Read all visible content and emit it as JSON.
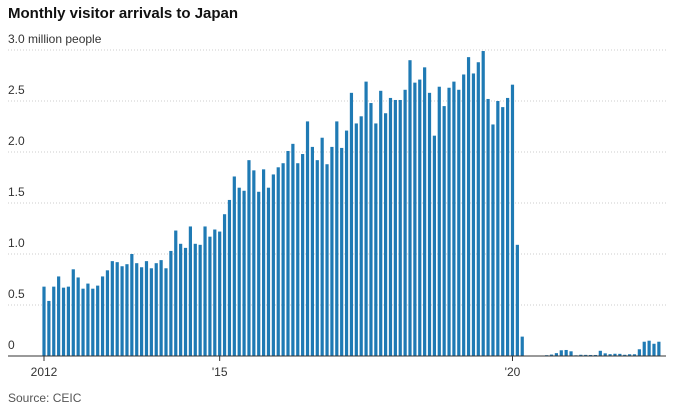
{
  "chart_data": {
    "type": "bar",
    "title": "Monthly visitor arrivals to Japan",
    "source": "Source: CEIC",
    "color": "#1f7ab4",
    "grid": true,
    "ylim": [
      0,
      3.0
    ],
    "yticks": [
      0,
      0.5,
      {
        "value": 1.0,
        "label": "1.0"
      },
      1.5,
      {
        "value": 2.0,
        "label": "2.0"
      },
      2.5,
      {
        "value": 3.0,
        "label": "3.0 million people"
      }
    ],
    "categories": [
      "2012",
      null,
      null,
      null,
      null,
      null,
      null,
      null,
      null,
      null,
      null,
      null,
      null,
      null,
      null,
      null,
      null,
      null,
      null,
      null,
      null,
      null,
      null,
      null,
      null,
      null,
      null,
      null,
      null,
      null,
      null,
      null,
      null,
      null,
      null,
      null,
      "'15",
      null,
      null,
      null,
      null,
      null,
      null,
      null,
      null,
      null,
      null,
      null,
      null,
      null,
      null,
      null,
      null,
      null,
      null,
      null,
      null,
      null,
      null,
      null,
      null,
      null,
      null,
      null,
      null,
      null,
      null,
      null,
      null,
      null,
      null,
      null,
      null,
      null,
      null,
      null,
      null,
      null,
      null,
      null,
      null,
      null,
      null,
      null,
      null,
      null,
      null,
      null,
      null,
      null,
      null,
      null,
      null,
      null,
      null,
      null,
      "'20",
      null,
      null,
      null,
      null,
      null,
      null,
      null,
      null,
      null,
      null,
      null,
      null,
      null,
      null,
      null,
      null,
      null,
      null,
      null,
      null,
      null,
      null,
      null,
      null,
      null,
      null,
      null,
      null,
      null,
      null
    ],
    "values": [
      0.68,
      0.54,
      0.68,
      0.78,
      0.67,
      0.68,
      0.85,
      0.77,
      0.66,
      0.71,
      0.66,
      0.69,
      0.78,
      0.84,
      0.93,
      0.92,
      0.88,
      0.9,
      1.0,
      0.91,
      0.87,
      0.93,
      0.86,
      0.91,
      0.94,
      0.86,
      1.03,
      1.23,
      1.1,
      1.06,
      1.27,
      1.1,
      1.09,
      1.27,
      1.17,
      1.24,
      1.22,
      1.39,
      1.53,
      1.76,
      1.65,
      1.62,
      1.92,
      1.82,
      1.61,
      1.83,
      1.65,
      1.78,
      1.85,
      1.89,
      2.01,
      2.08,
      1.89,
      1.98,
      2.3,
      2.05,
      1.92,
      2.14,
      1.88,
      2.05,
      2.3,
      2.04,
      2.21,
      2.58,
      2.28,
      2.35,
      2.69,
      2.48,
      2.28,
      2.6,
      2.38,
      2.53,
      2.51,
      2.51,
      2.61,
      2.9,
      2.68,
      2.71,
      2.83,
      2.58,
      2.16,
      2.64,
      2.45,
      2.63,
      2.69,
      2.61,
      2.76,
      2.93,
      2.77,
      2.88,
      2.99,
      2.52,
      2.27,
      2.5,
      2.44,
      2.53,
      2.66,
      1.09,
      0.19,
      0.003,
      0.002,
      0.003,
      0.004,
      0.008,
      0.014,
      0.028,
      0.056,
      0.059,
      0.046,
      0.007,
      0.012,
      0.011,
      0.01,
      0.01,
      0.051,
      0.026,
      0.018,
      0.022,
      0.021,
      0.012,
      0.017,
      0.017,
      0.066,
      0.14,
      0.15,
      0.12,
      0.14
    ]
  }
}
